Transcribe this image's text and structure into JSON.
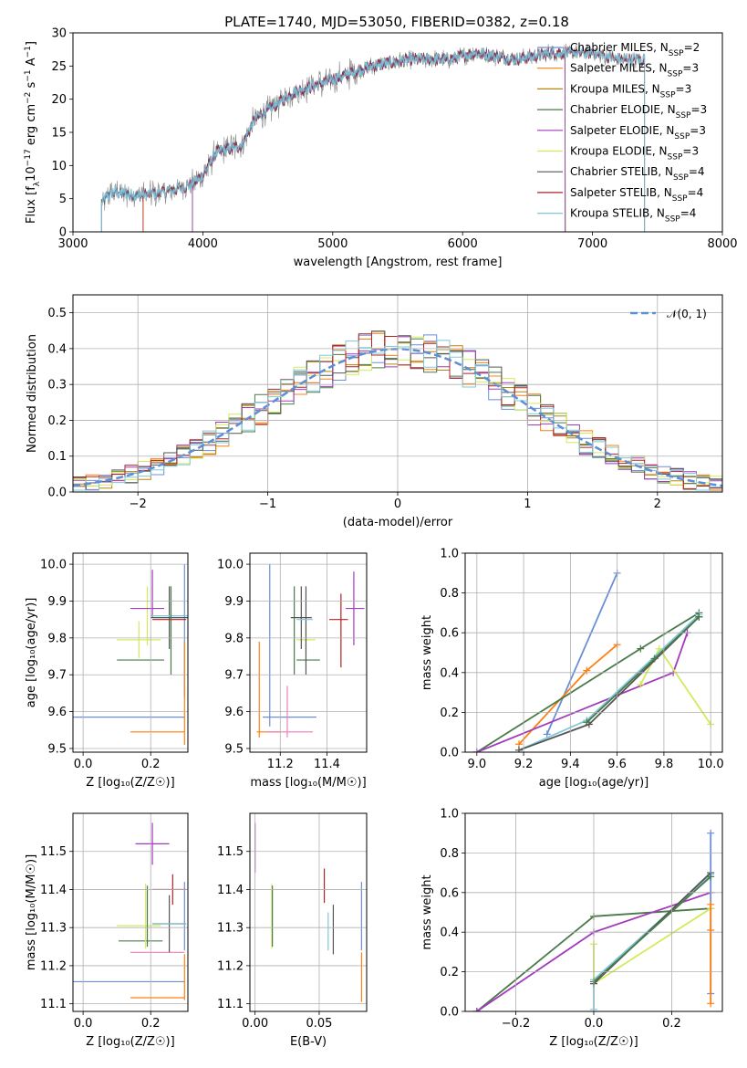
{
  "title": "PLATE=1740, MJD=53050, FIBERID=0382, z=0.18",
  "colors": {
    "chabrier_miles": "#6a8fd8",
    "salpeter_miles": "#ff7f0e",
    "kroupa_miles": "#b8860b",
    "chabrier_elodie": "#4a7a4a",
    "salpeter_elodie": "#a23bbd",
    "kroupa_elodie": "#d4ea5a",
    "chabrier_stelib": "#555555",
    "salpeter_stelib": "#b22222",
    "kroupa_stelib": "#7ec8d8",
    "pink": "#ea7fb8",
    "normal": "#5b8fd6"
  },
  "legend": [
    {
      "name": "Chabrier MILES",
      "nssp": "2",
      "color_key": "chabrier_miles"
    },
    {
      "name": "Salpeter MILES",
      "nssp": "3",
      "color_key": "salpeter_miles"
    },
    {
      "name": "Kroupa MILES",
      "nssp": "3",
      "color_key": "kroupa_miles"
    },
    {
      "name": "Chabrier ELODIE",
      "nssp": "3",
      "color_key": "chabrier_elodie"
    },
    {
      "name": "Salpeter ELODIE",
      "nssp": "3",
      "color_key": "salpeter_elodie"
    },
    {
      "name": "Kroupa ELODIE",
      "nssp": "3",
      "color_key": "kroupa_elodie"
    },
    {
      "name": "Chabrier STELIB",
      "nssp": "4",
      "color_key": "chabrier_stelib"
    },
    {
      "name": "Salpeter STELIB",
      "nssp": "4",
      "color_key": "salpeter_stelib"
    },
    {
      "name": "Kroupa STELIB",
      "nssp": "4",
      "color_key": "kroupa_stelib"
    }
  ],
  "chart_data": [
    {
      "id": "spectrum",
      "type": "line",
      "xlabel": "wavelength [Angstrom, rest frame]",
      "ylabel": "Flux [f_λ10^-17 erg cm^-2 s^-1 A^-1]",
      "xlim": [
        3000,
        8000
      ],
      "ylim": [
        0,
        30
      ],
      "xticks": [
        3000,
        4000,
        5000,
        6000,
        7000,
        8000
      ],
      "yticks": [
        0,
        5,
        10,
        15,
        20,
        25,
        30
      ],
      "continuum": {
        "x": [
          3220,
          3300,
          3500,
          3700,
          3900,
          4000,
          4100,
          4300,
          4400,
          4700,
          5000,
          5300,
          5600,
          5900,
          6100,
          6400,
          6700,
          7000,
          7200,
          7400
        ],
        "y": [
          4.5,
          6,
          5.5,
          6,
          7,
          8.5,
          12,
          13,
          17,
          21,
          23,
          25,
          26,
          26,
          27,
          26,
          27,
          27,
          26,
          26
        ]
      },
      "model_ranges": {
        "chabrier_miles": [
          3220,
          7400
        ],
        "salpeter_miles": [
          3540,
          7400
        ],
        "kroupa_miles": [
          3920,
          6790
        ],
        "chabrier_elodie": [
          3920,
          6790
        ],
        "salpeter_elodie": [
          3920,
          6790
        ],
        "kroupa_elodie": [
          3920,
          6790
        ],
        "chabrier_stelib": [
          3220,
          7400
        ],
        "salpeter_stelib": [
          3540,
          7400
        ],
        "kroupa_stelib": [
          3220,
          7400
        ]
      },
      "grid": false,
      "legend_position": "right"
    },
    {
      "id": "residuals",
      "type": "line",
      "xlabel": "(data-model)/error",
      "ylabel": "Normed distribution",
      "xlim": [
        -2.5,
        2.5
      ],
      "ylim": [
        0,
        0.55
      ],
      "xticks": [
        -2,
        -1,
        0,
        1,
        2
      ],
      "xticklabels": [
        "−2",
        "−1",
        "0",
        "1",
        "2"
      ],
      "yticks": [
        0.0,
        0.1,
        0.2,
        0.3,
        0.4,
        0.5
      ],
      "yticklabels": [
        "0.0",
        "0.1",
        "0.2",
        "0.3",
        "0.4",
        "0.5"
      ],
      "legend": "𝒩(0, 1)",
      "grid": true,
      "legend_position": "upper right",
      "bin_width": 0.1,
      "curve": "standard normal density"
    },
    {
      "id": "age_vs_Z",
      "type": "scatter",
      "xlabel": "Z [log₁₀(Z/Z☉)]",
      "ylabel": "age  [log₁₀(age/yr)]",
      "xlim": [
        -0.03,
        0.31
      ],
      "ylim": [
        9.49,
        10.03
      ],
      "xticks": [
        0.0,
        0.2
      ],
      "xticklabels": [
        "0.0",
        "0.2"
      ],
      "yticks": [
        9.5,
        9.6,
        9.7,
        9.8,
        9.9,
        10.0
      ],
      "yticklabels": [
        "9.5",
        "9.6",
        "9.7",
        "9.8",
        "9.9",
        "10.0"
      ],
      "grid": true,
      "points": [
        {
          "c": "chabrier_miles",
          "x": 0.135,
          "xerr": 0.165,
          "y": 9.585,
          "yerr": 0.0
        },
        {
          "c": "chabrier_miles",
          "x": 0.3,
          "xerr": 0.0,
          "y": 9.82,
          "yerr": 0.18
        },
        {
          "c": "salpeter_miles",
          "x": 0.22,
          "xerr": 0.08,
          "y": 9.545,
          "yerr": 0.0
        },
        {
          "c": "salpeter_miles",
          "x": 0.3,
          "xerr": 0.0,
          "y": 9.65,
          "yerr": 0.14
        },
        {
          "c": "chabrier_elodie",
          "x": 0.17,
          "xerr": 0.07,
          "y": 9.74,
          "yerr": 0.0
        },
        {
          "c": "kroupa_elodie",
          "x": 0.165,
          "xerr": 0.065,
          "y": 9.795,
          "yerr": 0.05
        },
        {
          "c": "kroupa_elodie",
          "x": 0.19,
          "xerr": 0.0,
          "y": 9.86,
          "yerr": 0.08
        },
        {
          "c": "salpeter_elodie",
          "x": 0.19,
          "xerr": 0.05,
          "y": 9.88,
          "yerr": 0.0
        },
        {
          "c": "salpeter_elodie",
          "x": 0.205,
          "xerr": 0.0,
          "y": 9.92,
          "yerr": 0.065
        },
        {
          "c": "chabrier_stelib",
          "x": 0.255,
          "xerr": 0.055,
          "y": 9.855,
          "yerr": 0.085
        },
        {
          "c": "salpeter_stelib",
          "x": 0.255,
          "xerr": 0.05,
          "y": 9.85,
          "yerr": 0.0
        },
        {
          "c": "kroupa_stelib",
          "x": 0.255,
          "xerr": 0.055,
          "y": 9.86,
          "yerr": 0.0
        },
        {
          "c": "chabrier_elodie",
          "x": 0.26,
          "xerr": 0.0,
          "y": 9.82,
          "yerr": 0.12
        }
      ]
    },
    {
      "id": "age_vs_mass",
      "type": "scatter",
      "xlabel": "mass [log₁₀(M/M☉)]",
      "ylabel": "",
      "xlim": [
        11.07,
        11.57
      ],
      "ylim": [
        9.49,
        10.03
      ],
      "xticks": [
        11.2,
        11.4
      ],
      "xticklabels": [
        "11.2",
        "11.4"
      ],
      "yticks": [
        9.5,
        9.6,
        9.7,
        9.8,
        9.9,
        10.0
      ],
      "yticklabels": [
        "9.5",
        "9.6",
        "9.7",
        "9.8",
        "9.9",
        "10.0"
      ],
      "grid": true,
      "points": [
        {
          "c": "chabrier_miles",
          "x": 11.155,
          "xerr": 0.0,
          "y": 9.78,
          "yerr": 0.22
        },
        {
          "c": "chabrier_miles",
          "x": 11.24,
          "xerr": 0.115,
          "y": 9.585,
          "yerr": 0.0
        },
        {
          "c": "salpeter_miles",
          "x": 11.11,
          "xerr": 0.0,
          "y": 9.66,
          "yerr": 0.13
        },
        {
          "c": "salpeter_miles",
          "x": 11.15,
          "xerr": 0.05,
          "y": 9.545,
          "yerr": 0.0
        },
        {
          "c": "pink",
          "x": 11.24,
          "xerr": 0.1,
          "y": 9.545,
          "yerr": 0.0
        },
        {
          "c": "pink",
          "x": 11.23,
          "xerr": 0.0,
          "y": 9.6,
          "yerr": 0.07
        },
        {
          "c": "chabrier_elodie",
          "x": 11.26,
          "xerr": 0.0,
          "y": 9.82,
          "yerr": 0.12
        },
        {
          "c": "chabrier_elodie",
          "x": 11.32,
          "xerr": 0.05,
          "y": 9.74,
          "yerr": 0.0
        },
        {
          "c": "kroupa_elodie",
          "x": 11.31,
          "xerr": 0.04,
          "y": 9.795,
          "yerr": 0.04
        },
        {
          "c": "chabrier_stelib",
          "x": 11.29,
          "xerr": 0.045,
          "y": 9.855,
          "yerr": 0.085
        },
        {
          "c": "chabrier_stelib",
          "x": 11.31,
          "xerr": 0.0,
          "y": 9.82,
          "yerr": 0.12
        },
        {
          "c": "kroupa_stelib",
          "x": 11.305,
          "xerr": 0.035,
          "y": 9.85,
          "yerr": 0.0
        },
        {
          "c": "salpeter_stelib",
          "x": 11.45,
          "xerr": 0.04,
          "y": 9.85,
          "yerr": 0.0
        },
        {
          "c": "salpeter_stelib",
          "x": 11.46,
          "xerr": 0.0,
          "y": 9.82,
          "yerr": 0.1
        },
        {
          "c": "salpeter_elodie",
          "x": 11.52,
          "xerr": 0.04,
          "y": 9.88,
          "yerr": 0.0
        },
        {
          "c": "salpeter_elodie",
          "x": 11.515,
          "xerr": 0.0,
          "y": 9.88,
          "yerr": 0.1
        }
      ]
    },
    {
      "id": "mass_weight_vs_age",
      "type": "line",
      "xlabel": "age  [log₁₀(age/yr)]",
      "ylabel": "mass weight",
      "xlim": [
        8.95,
        10.05
      ],
      "ylim": [
        0,
        1
      ],
      "xticks": [
        9.0,
        9.2,
        9.4,
        9.6,
        9.8,
        10.0
      ],
      "xticklabels": [
        "9.0",
        "9.2",
        "9.4",
        "9.6",
        "9.8",
        "10.0"
      ],
      "yticks": [
        0.0,
        0.2,
        0.4,
        0.6,
        0.8,
        1.0
      ],
      "yticklabels": [
        "0.0",
        "0.2",
        "0.4",
        "0.6",
        "0.8",
        "1.0"
      ],
      "grid": true,
      "series": [
        {
          "c": "chabrier_miles",
          "x": [
            9.3,
            9.6
          ],
          "y": [
            0.09,
            0.9
          ]
        },
        {
          "c": "salpeter_miles",
          "x": [
            9.18,
            9.47,
            9.6
          ],
          "y": [
            0.04,
            0.41,
            0.54
          ]
        },
        {
          "c": "chabrier_elodie",
          "x": [
            9.0,
            9.7,
            9.95
          ],
          "y": [
            0.0,
            0.52,
            0.7
          ]
        },
        {
          "c": "salpeter_elodie",
          "x": [
            9.0,
            9.84,
            9.9
          ],
          "y": [
            0.0,
            0.4,
            0.6
          ]
        },
        {
          "c": "kroupa_elodie",
          "x": [
            9.7,
            9.78,
            10.0
          ],
          "y": [
            0.34,
            0.52,
            0.14
          ]
        },
        {
          "c": "kroupa_stelib",
          "x": [
            9.18,
            9.47,
            9.95
          ],
          "y": [
            0.01,
            0.16,
            0.69
          ]
        },
        {
          "c": "chabrier_stelib",
          "x": [
            9.18,
            9.48,
            9.95
          ],
          "y": [
            0.01,
            0.14,
            0.68
          ]
        },
        {
          "c": "chabrier_elodie",
          "x": [
            9.47,
            9.76,
            9.95
          ],
          "y": [
            0.15,
            0.47,
            0.68
          ]
        }
      ]
    },
    {
      "id": "mass_vs_Z",
      "type": "scatter",
      "xlabel": "Z [log₁₀(Z/Z☉)]",
      "ylabel": "mass [log₁₀(M/M☉)]",
      "xlim": [
        -0.03,
        0.31
      ],
      "ylim": [
        11.08,
        11.6
      ],
      "xticks": [
        0.0,
        0.2
      ],
      "xticklabels": [
        "0.0",
        "0.2"
      ],
      "yticks": [
        11.1,
        11.2,
        11.3,
        11.4,
        11.5
      ],
      "yticklabels": [
        "11.1",
        "11.2",
        "11.3",
        "11.4",
        "11.5"
      ],
      "grid": true,
      "points": [
        {
          "c": "chabrier_miles",
          "x": 0.135,
          "xerr": 0.165,
          "y": 11.158,
          "yerr": 0.0
        },
        {
          "c": "salpeter_miles",
          "x": 0.22,
          "xerr": 0.08,
          "y": 11.116,
          "yerr": 0.0
        },
        {
          "c": "salpeter_miles",
          "x": 0.3,
          "xerr": 0.0,
          "y": 11.17,
          "yerr": 0.06
        },
        {
          "c": "chabrier_miles",
          "x": 0.3,
          "xerr": 0.0,
          "y": 11.33,
          "yerr": 0.09
        },
        {
          "c": "pink",
          "x": 0.22,
          "xerr": 0.08,
          "y": 11.235,
          "yerr": 0.0
        },
        {
          "c": "chabrier_elodie",
          "x": 0.17,
          "xerr": 0.065,
          "y": 11.265,
          "yerr": 0.0
        },
        {
          "c": "kroupa_elodie",
          "x": 0.165,
          "xerr": 0.065,
          "y": 11.305,
          "yerr": 0.0
        },
        {
          "c": "kroupa_elodie",
          "x": 0.185,
          "xerr": 0.0,
          "y": 11.33,
          "yerr": 0.085
        },
        {
          "c": "chabrier_elodie",
          "x": 0.19,
          "xerr": 0.0,
          "y": 11.33,
          "yerr": 0.08
        },
        {
          "c": "chabrier_stelib",
          "x": 0.255,
          "xerr": 0.05,
          "y": 11.31,
          "yerr": 0.075
        },
        {
          "c": "kroupa_stelib",
          "x": 0.255,
          "xerr": 0.05,
          "y": 11.31,
          "yerr": 0.0
        },
        {
          "c": "salpeter_stelib",
          "x": 0.255,
          "xerr": 0.05,
          "y": 11.4,
          "yerr": 0.0
        },
        {
          "c": "salpeter_stelib",
          "x": 0.265,
          "xerr": 0.0,
          "y": 11.4,
          "yerr": 0.04
        },
        {
          "c": "salpeter_elodie",
          "x": 0.205,
          "xerr": 0.05,
          "y": 11.52,
          "yerr": 0.0
        },
        {
          "c": "salpeter_elodie",
          "x": 0.205,
          "xerr": 0.0,
          "y": 11.52,
          "yerr": 0.055
        }
      ]
    },
    {
      "id": "mass_vs_ebv",
      "type": "scatter",
      "xlabel": "E(B-V)",
      "ylabel": "",
      "xlim": [
        -0.004,
        0.087
      ],
      "ylim": [
        11.08,
        11.6
      ],
      "xticks": [
        0.0,
        0.05
      ],
      "xticklabels": [
        "0.00",
        "0.05"
      ],
      "yticks": [
        11.1,
        11.2,
        11.3,
        11.4,
        11.5
      ],
      "yticklabels": [
        "11.1",
        "11.2",
        "11.3",
        "11.4",
        "11.5"
      ],
      "grid": true,
      "points": [
        {
          "c": "salpeter_elodie",
          "x": 0.0,
          "xerr": 0.0,
          "y": 11.51,
          "yerr": 0.065
        },
        {
          "c": "kroupa_elodie",
          "x": 0.013,
          "xerr": 0.0,
          "y": 11.33,
          "yerr": 0.085
        },
        {
          "c": "chabrier_elodie",
          "x": 0.0135,
          "xerr": 0.0,
          "y": 11.33,
          "yerr": 0.08
        },
        {
          "c": "salpeter_stelib",
          "x": 0.054,
          "xerr": 0.0,
          "y": 11.41,
          "yerr": 0.045
        },
        {
          "c": "kroupa_stelib",
          "x": 0.057,
          "xerr": 0.0,
          "y": 11.29,
          "yerr": 0.05
        },
        {
          "c": "chabrier_stelib",
          "x": 0.061,
          "xerr": 0.0,
          "y": 11.295,
          "yerr": 0.065
        },
        {
          "c": "chabrier_miles",
          "x": 0.083,
          "xerr": 0.0,
          "y": 11.33,
          "yerr": 0.09
        },
        {
          "c": "salpeter_miles",
          "x": 0.083,
          "xerr": 0.0,
          "y": 11.17,
          "yerr": 0.065
        }
      ]
    },
    {
      "id": "mass_weight_vs_Z",
      "type": "line",
      "xlabel": "Z [log₁₀(Z/Z☉)]",
      "ylabel": "mass weight",
      "xlim": [
        -0.33,
        0.33
      ],
      "ylim": [
        0,
        1
      ],
      "xticks": [
        -0.2,
        0.0,
        0.2
      ],
      "xticklabels": [
        "−0.2",
        "0.0",
        "0.2"
      ],
      "yticks": [
        0.0,
        0.2,
        0.4,
        0.6,
        0.8,
        1.0
      ],
      "yticklabels": [
        "0.0",
        "0.2",
        "0.4",
        "0.6",
        "0.8",
        "1.0"
      ],
      "grid": true,
      "series": [
        {
          "c": "chabrier_elodie",
          "x": [
            -0.3,
            0.0,
            0.3
          ],
          "y": [
            0.0,
            0.48,
            0.52
          ]
        },
        {
          "c": "salpeter_elodie",
          "x": [
            -0.3,
            0.0,
            0.3
          ],
          "y": [
            0.0,
            0.4,
            0.6
          ]
        },
        {
          "c": "kroupa_elodie",
          "x": [
            0.0,
            0.0,
            0.3
          ],
          "y": [
            0.34,
            0.14,
            0.52
          ]
        },
        {
          "c": "kroupa_stelib",
          "x": [
            0.0,
            0.0,
            0.3
          ],
          "y": [
            0.01,
            0.16,
            0.69
          ]
        },
        {
          "c": "chabrier_stelib",
          "x": [
            0.0,
            0.3
          ],
          "y": [
            0.14,
            0.7
          ]
        },
        {
          "c": "chabrier_miles",
          "x": [
            0.3,
            0.3
          ],
          "y": [
            0.09,
            0.9
          ]
        },
        {
          "c": "salpeter_miles",
          "x": [
            0.3,
            0.3,
            0.3
          ],
          "y": [
            0.04,
            0.41,
            0.54
          ]
        },
        {
          "c": "chabrier_elodie",
          "x": [
            0.0,
            0.3
          ],
          "y": [
            0.15,
            0.68
          ]
        }
      ]
    }
  ]
}
